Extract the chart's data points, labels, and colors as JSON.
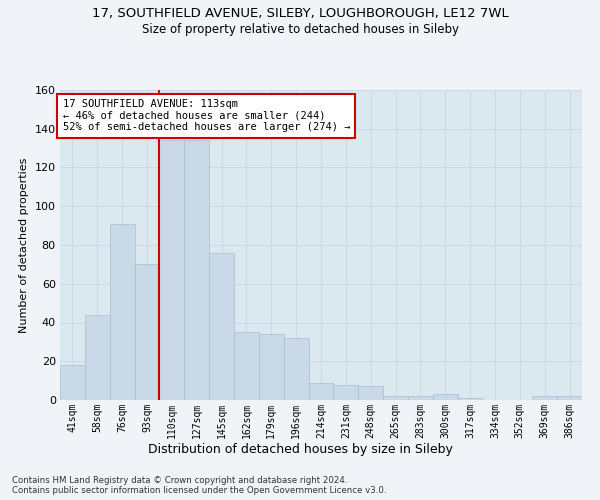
{
  "title": "17, SOUTHFIELD AVENUE, SILEBY, LOUGHBOROUGH, LE12 7WL",
  "subtitle": "Size of property relative to detached houses in Sileby",
  "xlabel": "Distribution of detached houses by size in Sileby",
  "ylabel": "Number of detached properties",
  "bar_labels": [
    "41sqm",
    "58sqm",
    "76sqm",
    "93sqm",
    "110sqm",
    "127sqm",
    "145sqm",
    "162sqm",
    "179sqm",
    "196sqm",
    "214sqm",
    "231sqm",
    "248sqm",
    "265sqm",
    "283sqm",
    "300sqm",
    "317sqm",
    "334sqm",
    "352sqm",
    "369sqm",
    "386sqm"
  ],
  "bar_values": [
    18,
    44,
    91,
    70,
    134,
    134,
    76,
    35,
    34,
    32,
    9,
    8,
    7,
    2,
    2,
    3,
    1,
    0,
    0,
    2,
    2
  ],
  "bar_color": "#c9d9e8",
  "bar_edge_color": "#a8bece",
  "property_line_index": 4,
  "annotation_lines": [
    "17 SOUTHFIELD AVENUE: 113sqm",
    "← 46% of detached houses are smaller (244)",
    "52% of semi-detached houses are larger (274) →"
  ],
  "annotation_box_color": "#ffffff",
  "annotation_border_color": "#cc0000",
  "vline_color": "#cc0000",
  "grid_color": "#c8d8e8",
  "background_color": "#dce8f0",
  "fig_background_color": "#f0f4f8",
  "ylim": [
    0,
    160
  ],
  "yticks": [
    0,
    20,
    40,
    60,
    80,
    100,
    120,
    140,
    160
  ],
  "footer_line1": "Contains HM Land Registry data © Crown copyright and database right 2024.",
  "footer_line2": "Contains public sector information licensed under the Open Government Licence v3.0."
}
